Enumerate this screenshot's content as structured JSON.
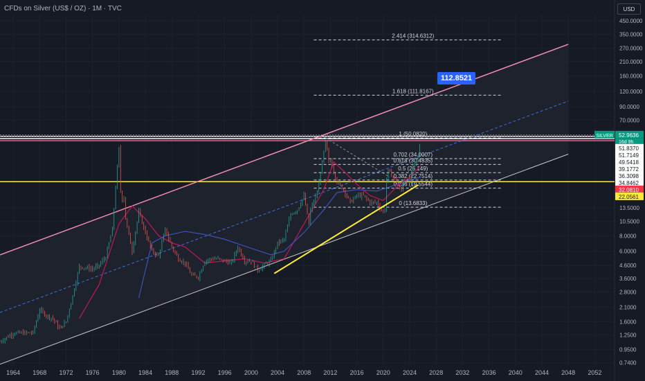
{
  "header": {
    "title": "CFDs on Silver (US$ / OZ) · 1M · TVC",
    "currency_button": "USD"
  },
  "target_label": "112.8521",
  "chart_data": {
    "type": "candlestick",
    "symbol": "SILVER",
    "y_scale": "log",
    "ylim": [
      0.7,
      500
    ],
    "xlim": [
      1962,
      2055
    ],
    "x_ticks": [
      1964,
      1968,
      1972,
      1976,
      1980,
      1984,
      1988,
      1992,
      1996,
      2000,
      2004,
      2008,
      2012,
      2016,
      2020,
      2024,
      2028,
      2032,
      2036,
      2040,
      2044,
      2048,
      2052
    ],
    "y_ticks": [
      {
        "value": 450,
        "label": "450.0000"
      },
      {
        "value": 350,
        "label": "350.0000"
      },
      {
        "value": 270,
        "label": "270.0000"
      },
      {
        "value": 210,
        "label": "210.0000"
      },
      {
        "value": 160,
        "label": "160.0000"
      },
      {
        "value": 120,
        "label": "120.0000"
      },
      {
        "value": 90,
        "label": "90.0000"
      },
      {
        "value": 70,
        "label": "70.0000"
      },
      {
        "value": 13.5,
        "label": "13.5000"
      },
      {
        "value": 10.5,
        "label": "10.5000"
      },
      {
        "value": 8,
        "label": "8.0000"
      },
      {
        "value": 6,
        "label": "6.0000"
      },
      {
        "value": 4.6,
        "label": "4.6000"
      },
      {
        "value": 3.6,
        "label": "3.6000"
      },
      {
        "value": 2.8,
        "label": "2.8000"
      },
      {
        "value": 2.1,
        "label": "2.1000"
      },
      {
        "value": 1.6,
        "label": "1.6000"
      },
      {
        "value": 1.25,
        "label": "1.2500"
      },
      {
        "value": 0.95,
        "label": "0.9500"
      },
      {
        "value": 0.74,
        "label": "0.7400"
      }
    ],
    "price_labels": [
      {
        "value": 52.9636,
        "label": "52.9636",
        "bg": "#089981",
        "fg": "#ffffff"
      },
      {
        "value": 51.837,
        "label": "51.8370",
        "bg": "#ffffff",
        "fg": "#131722"
      },
      {
        "value": 51.7149,
        "label": "51.7149",
        "bg": "#ffffff",
        "fg": "#131722"
      },
      {
        "value": 49.5418,
        "label": "49.5418",
        "bg": "#ffffff",
        "fg": "#131722"
      },
      {
        "value": 39.1772,
        "label": "39.1772",
        "bg": "#ffffff",
        "fg": "#131722"
      },
      {
        "value": 36.3098,
        "label": "36.3098",
        "bg": "#ffffff",
        "fg": "#131722"
      },
      {
        "value": 34.8462,
        "label": "34.8462",
        "bg": "#ffffff",
        "fg": "#131722"
      },
      {
        "value": 32.081,
        "label": "32.0810",
        "bg": "#f23645",
        "fg": "#ffffff"
      },
      {
        "value": 22.0561,
        "label": "22.0561",
        "bg": "#ffeb3b",
        "fg": "#131722"
      }
    ],
    "last_price_countdown": "16d 9h",
    "fib_levels": [
      {
        "ratio": "0",
        "value": 13.6833,
        "label": "0 (13.6833)"
      },
      {
        "ratio": "0.236",
        "value": 19.5544,
        "label": "0.236 (19.5544)"
      },
      {
        "ratio": "0.382",
        "value": 22.7514,
        "label": "0.382 (22.7514)"
      },
      {
        "ratio": "0.5",
        "value": 26.149,
        "label": "0.5 (26.149)"
      },
      {
        "ratio": "0.618",
        "value": 30.4835,
        "label": "0.618 (30.4835)"
      },
      {
        "ratio": "0.702",
        "value": 34.0007,
        "label": "0.702 (34.0007)"
      },
      {
        "ratio": "1",
        "value": 50.082,
        "label": "1 (50.0820)"
      },
      {
        "ratio": "1.618",
        "value": 111.8167,
        "label": "1.618 (111.8167)"
      },
      {
        "ratio": "2.414",
        "value": 314.6312,
        "label": "2.414 (314.6312)"
      }
    ],
    "price_path": [
      [
        1962,
        1.1
      ],
      [
        1964,
        1.29
      ],
      [
        1967,
        1.3
      ],
      [
        1968,
        2.0
      ],
      [
        1969,
        1.8
      ],
      [
        1970,
        1.7
      ],
      [
        1971,
        1.4
      ],
      [
        1972,
        1.6
      ],
      [
        1973,
        2.6
      ],
      [
        1974,
        4.5
      ],
      [
        1975,
        4.4
      ],
      [
        1976,
        4.3
      ],
      [
        1977,
        4.6
      ],
      [
        1978,
        5.4
      ],
      [
        1979,
        9
      ],
      [
        1979.5,
        20
      ],
      [
        1980.05,
        44
      ],
      [
        1980.3,
        15
      ],
      [
        1980.8,
        17
      ],
      [
        1981,
        11
      ],
      [
        1982,
        6
      ],
      [
        1983,
        12.5
      ],
      [
        1984,
        8.5
      ],
      [
        1985,
        6
      ],
      [
        1986,
        5.5
      ],
      [
        1987,
        9
      ],
      [
        1988,
        6.5
      ],
      [
        1989,
        5.2
      ],
      [
        1990,
        4.8
      ],
      [
        1991,
        3.8
      ],
      [
        1992,
        3.7
      ],
      [
        1993,
        5
      ],
      [
        1994,
        5.2
      ],
      [
        1995,
        5.2
      ],
      [
        1996,
        5.0
      ],
      [
        1997,
        4.8
      ],
      [
        1998,
        6.5
      ],
      [
        1999,
        5.0
      ],
      [
        2000,
        5.0
      ],
      [
        2001,
        4.2
      ],
      [
        2002,
        4.6
      ],
      [
        2003,
        5
      ],
      [
        2004,
        7
      ],
      [
        2005,
        7.5
      ],
      [
        2006,
        12
      ],
      [
        2007,
        13
      ],
      [
        2008,
        17
      ],
      [
        2008.8,
        9.5
      ],
      [
        2009,
        13
      ],
      [
        2010,
        18
      ],
      [
        2011.3,
        48
      ],
      [
        2011.7,
        32
      ],
      [
        2012,
        33
      ],
      [
        2013,
        22
      ],
      [
        2014,
        19
      ],
      [
        2015,
        15
      ],
      [
        2016,
        17
      ],
      [
        2017,
        17
      ],
      [
        2018,
        15
      ],
      [
        2019,
        15
      ],
      [
        2020.2,
        12
      ],
      [
        2020.6,
        28
      ],
      [
        2021,
        26
      ],
      [
        2022,
        22
      ],
      [
        2022.7,
        18
      ],
      [
        2023,
        23
      ],
      [
        2024,
        22
      ],
      [
        2024.5,
        30
      ],
      [
        2025,
        32
      ],
      [
        2025.3,
        36
      ],
      [
        2025.7,
        52.96
      ]
    ],
    "moving_averages": [
      {
        "color": "#c2185b",
        "points": [
          [
            1974,
            1.7
          ],
          [
            1977,
            3.2
          ],
          [
            1980,
            10
          ],
          [
            1982,
            14
          ],
          [
            1984,
            11
          ],
          [
            1986,
            8
          ],
          [
            1988,
            7
          ],
          [
            1990,
            6.5
          ],
          [
            1993,
            4.8
          ],
          [
            1996,
            5
          ],
          [
            1999,
            5.2
          ],
          [
            2002,
            4.8
          ],
          [
            2005,
            5.2
          ],
          [
            2008,
            10
          ],
          [
            2011,
            19
          ],
          [
            2012.5,
            32
          ],
          [
            2014,
            27
          ],
          [
            2016,
            21
          ],
          [
            2018,
            17
          ],
          [
            2020,
            15.5
          ],
          [
            2022,
            20
          ],
          [
            2024,
            24
          ],
          [
            2025.7,
            30
          ]
        ]
      },
      {
        "color": "#3f51b5",
        "points": [
          [
            1983,
            2.5
          ],
          [
            1985,
            7
          ],
          [
            1987,
            8
          ],
          [
            1990,
            8.7
          ],
          [
            1993,
            8.2
          ],
          [
            1996,
            7.5
          ],
          [
            1999,
            6.6
          ],
          [
            2003,
            5.6
          ],
          [
            2005,
            6
          ],
          [
            2008,
            8.5
          ],
          [
            2011,
            13
          ],
          [
            2013,
            18
          ],
          [
            2016,
            19
          ],
          [
            2019,
            18.5
          ],
          [
            2021,
            20
          ],
          [
            2023,
            22
          ],
          [
            2025.7,
            24
          ]
        ]
      }
    ],
    "channel": {
      "upper": [
        [
          1962,
          5.6
        ],
        [
          2048,
          290
        ]
      ],
      "mid": [
        [
          1962,
          1.9
        ],
        [
          2048,
          100
        ]
      ],
      "lower": [
        [
          1962,
          0.72
        ],
        [
          2048,
          37
        ]
      ]
    },
    "trendline": [
      [
        2003.5,
        3.95
      ],
      [
        2025.3,
        20.8
      ]
    ],
    "horizontal_lines": [
      {
        "value": 51.7,
        "color": "#ffffff"
      },
      {
        "value": 49.5,
        "color": "#ffffff"
      },
      {
        "value": 47.6,
        "color": "#f06292"
      },
      {
        "value": 22.06,
        "color": "#ffeb3b"
      }
    ]
  }
}
